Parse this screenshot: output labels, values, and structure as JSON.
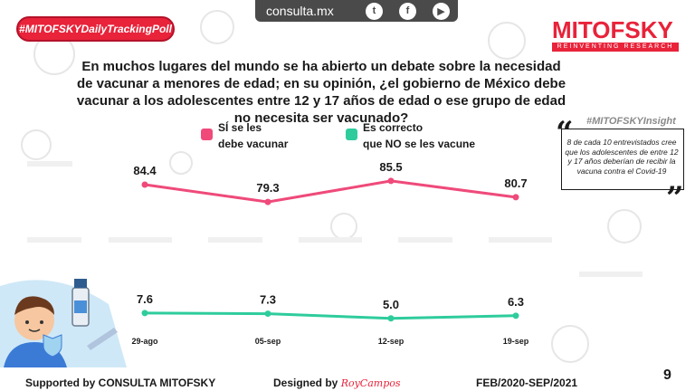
{
  "header": {
    "site": "consulta.mx",
    "social_icons": [
      "twitter-icon",
      "facebook-icon",
      "youtube-icon"
    ],
    "hashtag": "#MITOFSKYDailyTrackingPoll",
    "brand": "MITOFSKY",
    "brand_tagline": "REINVENTING RESEARCH"
  },
  "question": "En muchos lugares del mundo se ha abierto un debate sobre la necesidad de vacunar a menores de edad; en su opinión, ¿el gobierno de México debe vacunar a los adolescentes entre 12 y 17 años de edad o ese grupo de edad no necesita ser vacunado?",
  "legend": {
    "series1_line1": "SÍ se les",
    "series1_line2": "debe vacunar",
    "series2_line1": "Es correcto",
    "series2_line2": "que NO se les vacune"
  },
  "insight": {
    "title_prefix": "#MITOFSKY",
    "title_suffix": "Insight",
    "body": "8 de cada 10 entrevistados cree que los adolescentes de entre 12 y 17 años deberían de recibir la vacuna contra el Covid-19"
  },
  "chart_data": {
    "type": "line",
    "categories": [
      "29-ago",
      "05-sep",
      "12-sep",
      "19-sep"
    ],
    "series": [
      {
        "name": "SÍ se les debe vacunar",
        "color": "#ef4a7a",
        "values": [
          84.4,
          79.3,
          85.5,
          80.7
        ]
      },
      {
        "name": "Es correcto que NO se les vacune",
        "color": "#2ecc9c",
        "values": [
          7.6,
          7.3,
          5.0,
          6.3
        ]
      }
    ],
    "value_labels": [
      [
        "84.4",
        "79.3",
        "85.5",
        "80.7"
      ],
      [
        "7.6",
        "7.3",
        "5.0",
        "6.3"
      ]
    ]
  },
  "footer": {
    "supported": "Supported by   CONSULTA   MITOFSKY",
    "designed": "Designed by ",
    "designer": "RoyCampos",
    "period": "FEB/2020-SEP/2021",
    "page": "9"
  },
  "colors": {
    "accent": "#e8233a",
    "pink": "#ef4a7a",
    "green": "#2ecc9c"
  }
}
